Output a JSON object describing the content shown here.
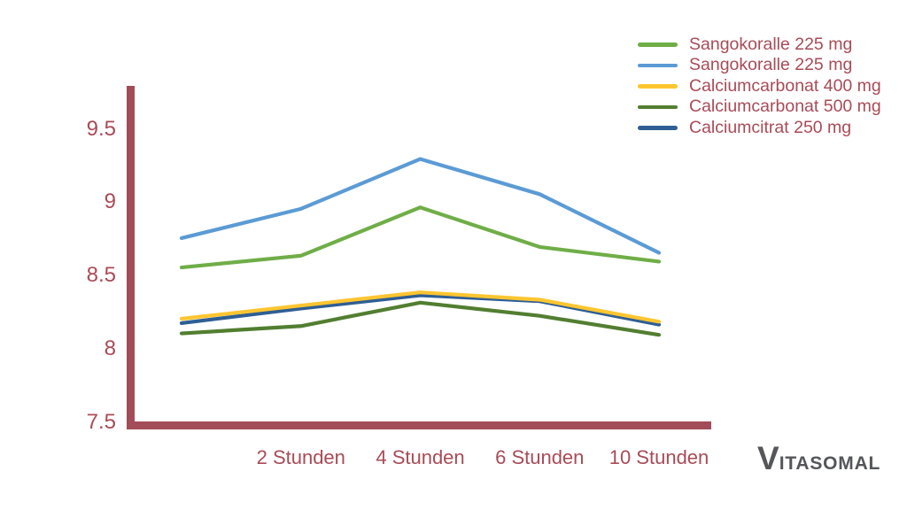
{
  "logo": {
    "first_letter": "V",
    "rest": "ITASOMAL",
    "color": "#555659"
  },
  "chart_data": {
    "type": "line",
    "categories": [
      "",
      "2 Stunden",
      "4 Stunden",
      "6 Stunden",
      "10 Stunden"
    ],
    "series": [
      {
        "name": "Sangokoralle 225 mg",
        "color": "#6FAE47",
        "values": [
          8.56,
          8.64,
          8.97,
          8.7,
          8.6
        ]
      },
      {
        "name": "Sangokoralle 225 mg",
        "color": "#5B9BD5",
        "values": [
          8.76,
          8.96,
          9.3,
          9.06,
          8.66
        ]
      },
      {
        "name": "Calciumcarbonat 400 mg",
        "color": "#FDC530",
        "values": [
          8.21,
          8.3,
          8.39,
          8.34,
          8.19
        ]
      },
      {
        "name": "Calciumcarbonat 500 mg",
        "color": "#527E30",
        "values": [
          8.11,
          8.16,
          8.32,
          8.23,
          8.1
        ]
      },
      {
        "name": "Calciumcitrat 250 mg",
        "color": "#2E5E94",
        "values": [
          8.18,
          8.28,
          8.37,
          8.33,
          8.17
        ]
      }
    ],
    "title": "",
    "xlabel": "",
    "ylabel": "",
    "y_ticks": [
      9.5,
      9,
      8.5,
      8,
      7.5
    ],
    "y_tick_labels": [
      "9.5",
      "9",
      "8.5",
      "8",
      "7.5"
    ],
    "ylim": [
      7.5,
      9.8
    ],
    "grid": false,
    "legend_position": "top-right",
    "axis_color": "#A24C57",
    "tick_label_color": "#A94B56"
  }
}
